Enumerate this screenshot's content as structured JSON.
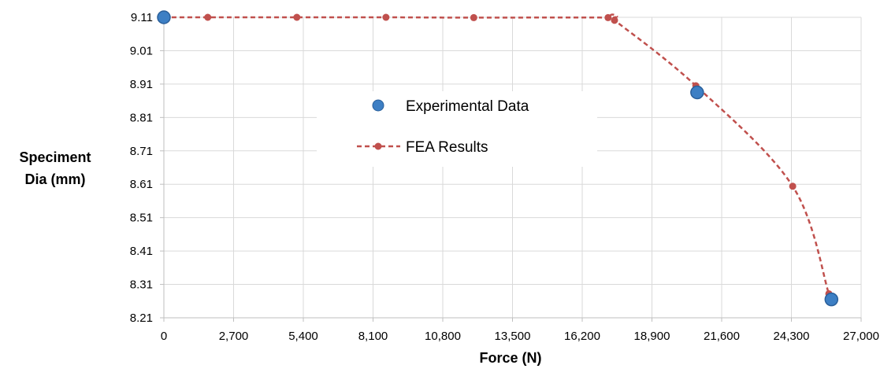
{
  "chart_data": {
    "type": "scatter",
    "title": "",
    "xlabel": "Force (N)",
    "ylabel_lines": [
      "Speciment",
      "Dia (mm)"
    ],
    "xlim": [
      0,
      27000
    ],
    "ylim": [
      8.21,
      9.11
    ],
    "x_ticks": [
      0,
      2700,
      5400,
      8100,
      10800,
      13500,
      16200,
      18900,
      21600,
      24300,
      27000
    ],
    "x_tick_labels": [
      "0",
      "2,700",
      "5,400",
      "8,100",
      "10,800",
      "13,500",
      "16,200",
      "18,900",
      "21,600",
      "24,300",
      "27,000"
    ],
    "y_ticks": [
      8.21,
      8.31,
      8.41,
      8.51,
      8.61,
      8.71,
      8.81,
      8.91,
      9.01,
      9.11
    ],
    "y_tick_labels": [
      "8.21",
      "8.31",
      "8.41",
      "8.51",
      "8.61",
      "8.71",
      "8.81",
      "8.91",
      "9.01",
      "9.11"
    ],
    "grid": true,
    "legend_position": "center",
    "series": [
      {
        "name": "Experimental Data",
        "style": "markers",
        "color": "#3d7fc4",
        "edge_color": "#2a5f9a",
        "points": [
          {
            "x": 0,
            "y": 9.11
          },
          {
            "x": 20650,
            "y": 8.885
          },
          {
            "x": 25850,
            "y": 8.265
          }
        ]
      },
      {
        "name": "FEA Results",
        "style": "dashed-line-markers",
        "color": "#c0504d",
        "points": [
          {
            "x": 0,
            "y": 9.11
          },
          {
            "x": 1700,
            "y": 9.11
          },
          {
            "x": 5150,
            "y": 9.11
          },
          {
            "x": 8600,
            "y": 9.11
          },
          {
            "x": 12000,
            "y": 9.109
          },
          {
            "x": 17200,
            "y": 9.109
          },
          {
            "x": 17450,
            "y": 9.101
          },
          {
            "x": 20600,
            "y": 8.905
          },
          {
            "x": 24350,
            "y": 8.604
          },
          {
            "x": 25750,
            "y": 8.282
          }
        ]
      }
    ]
  }
}
